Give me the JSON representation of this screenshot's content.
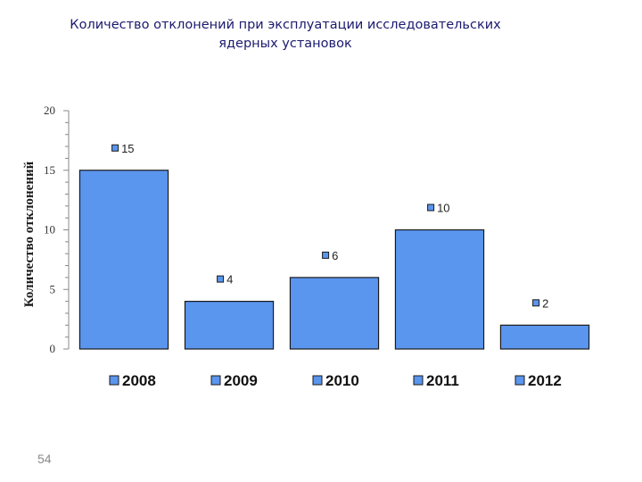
{
  "slide": {
    "title_line1": "Количество отклонений при эксплуатации исследовательских",
    "title_line2": "ядерных установок",
    "page_number": "54"
  },
  "colors": {
    "bar_fill": "#5a95ee",
    "bar_stroke": "#1a1a1a",
    "title": "#1a1a6e"
  },
  "chart_data": {
    "type": "bar",
    "categories": [
      "2008",
      "2009",
      "2010",
      "2011",
      "2012"
    ],
    "values": [
      15,
      4,
      6,
      10,
      2
    ],
    "data_labels": [
      "15",
      "4",
      "6",
      "10",
      "2"
    ],
    "title": "Количество отклонений при эксплуатации исследовательских ядерных установок",
    "xlabel": "",
    "ylabel": "Количество отклонений",
    "ylim": [
      0,
      20
    ],
    "yticks": [
      0,
      5,
      10,
      15,
      20
    ],
    "ytick_labels": [
      "0",
      "5",
      "10",
      "15",
      "20"
    ],
    "legend": {
      "placement": "bottom",
      "entries": [
        "2008",
        "2009",
        "2010",
        "2011",
        "2012"
      ]
    },
    "grid": false
  }
}
